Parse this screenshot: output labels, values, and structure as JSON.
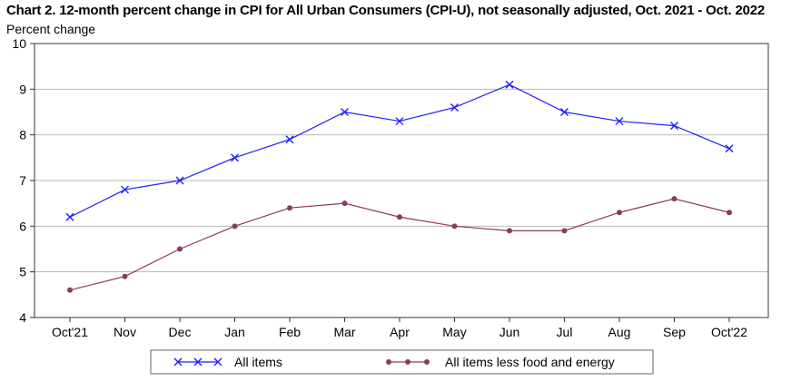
{
  "chart_data": {
    "type": "line",
    "title": "Chart 2. 12-month percent change in CPI for All Urban Consumers (CPI-U), not seasonally adjusted, Oct. 2021 - Oct. 2022",
    "ylabel": "Percent change",
    "xlabel": "",
    "categories": [
      "Oct'21",
      "Nov",
      "Dec",
      "Jan",
      "Feb",
      "Mar",
      "Apr",
      "May",
      "Jun",
      "Jul",
      "Aug",
      "Sep",
      "Oct'22"
    ],
    "ylim": [
      4,
      10
    ],
    "yticks": [
      4,
      5,
      6,
      7,
      8,
      9,
      10
    ],
    "grid": true,
    "legend_position": "bottom",
    "series": [
      {
        "name": "All items",
        "color": "#1f1fff",
        "marker": "x",
        "values": [
          6.2,
          6.8,
          7.0,
          7.5,
          7.9,
          8.5,
          8.3,
          8.6,
          9.1,
          8.5,
          8.3,
          8.2,
          7.7
        ]
      },
      {
        "name": "All items less food and energy",
        "color": "#8b3a5a",
        "marker": "dot",
        "values": [
          4.6,
          4.9,
          5.5,
          6.0,
          6.4,
          6.5,
          6.2,
          6.0,
          5.9,
          5.9,
          6.3,
          6.6,
          6.3
        ]
      }
    ]
  }
}
